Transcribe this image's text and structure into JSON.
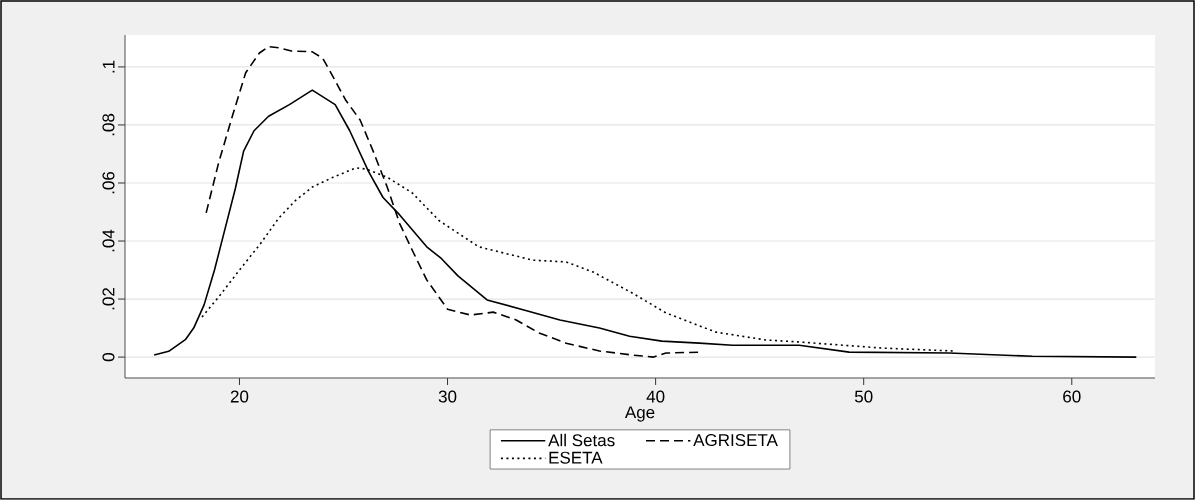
{
  "chart_data": {
    "type": "line",
    "xlabel": "Age",
    "xlim": [
      14.5,
      64
    ],
    "ylim": [
      -0.0072,
      0.111
    ],
    "xticks": [
      20,
      30,
      40,
      50,
      60
    ],
    "yticks": [
      0,
      {
        "value": 0.02,
        "label": ".02"
      },
      {
        "value": 0.04,
        "label": ".04"
      },
      {
        "value": 0.06,
        "label": ".06"
      },
      {
        "value": 0.08,
        "label": ".08"
      },
      {
        "value": 0.1,
        "label": ".1"
      }
    ],
    "grid": "y",
    "legend": "bottom",
    "marker": "none",
    "series": [
      {
        "name": "All Setas",
        "color": "#000000",
        "line_style": "solid",
        "x": [
          15.9,
          16.6,
          17.4,
          17.8,
          18.3,
          18.8,
          19.3,
          19.8,
          20.2,
          20.7,
          21.4,
          22.4,
          23.5,
          24.6,
          25.3,
          26.2,
          26.9,
          27.7,
          29.0,
          29.7,
          30.5,
          31.9,
          33.8,
          35.4,
          37.3,
          38.75,
          40.3,
          42.1,
          43.7,
          44.5,
          46.9,
          49.3,
          54.1,
          58.1,
          63.1
        ],
        "values": [
          0.0007,
          0.002,
          0.006,
          0.01,
          0.018,
          0.03,
          0.044,
          0.058,
          0.071,
          0.078,
          0.083,
          0.087,
          0.092,
          0.087,
          0.078,
          0.064,
          0.055,
          0.049,
          0.038,
          0.034,
          0.028,
          0.0197,
          0.016,
          0.0128,
          0.01,
          0.0072,
          0.0055,
          0.0048,
          0.0041,
          0.0041,
          0.0041,
          0.0017,
          0.0014,
          0.0003,
          0.0
        ]
      },
      {
        "name": "AGRISETA",
        "color": "#000000",
        "line_style": "dashed",
        "x": [
          18.4,
          19.0,
          19.7,
          20.3,
          20.96,
          21.4,
          21.9,
          22.5,
          23.5,
          24.0,
          24.5,
          25.1,
          25.8,
          26.4,
          27.1,
          27.7,
          28.3,
          29.0,
          30.0,
          31.1,
          32.2,
          33.3,
          34.4,
          35.7,
          37.3,
          38.9,
          39.9,
          40.5,
          42.1
        ],
        "values": [
          0.0497,
          0.067,
          0.084,
          0.098,
          0.1048,
          0.107,
          0.1066,
          0.1055,
          0.1052,
          0.103,
          0.0966,
          0.0886,
          0.0817,
          0.0714,
          0.0586,
          0.046,
          0.0369,
          0.0266,
          0.0165,
          0.0145,
          0.0155,
          0.0128,
          0.0083,
          0.0048,
          0.0021,
          0.0007,
          0.0,
          0.0014,
          0.0017
        ]
      },
      {
        "name": "ESETA",
        "color": "#000000",
        "line_style": "dotted",
        "x": [
          18.2,
          19.0,
          20.0,
          21.0,
          21.9,
          22.7,
          23.5,
          24.5,
          25.6,
          26.1,
          27.1,
          28.3,
          29.6,
          31.5,
          34.1,
          35.7,
          37.0,
          38.9,
          40.5,
          42.9,
          45.3,
          46.9,
          50.9,
          54.3
        ],
        "values": [
          0.0138,
          0.0207,
          0.03,
          0.039,
          0.048,
          0.054,
          0.0586,
          0.062,
          0.0652,
          0.0648,
          0.062,
          0.0566,
          0.047,
          0.038,
          0.0334,
          0.0328,
          0.0293,
          0.022,
          0.0152,
          0.0086,
          0.0059,
          0.0052,
          0.0031,
          0.0021
        ]
      }
    ]
  }
}
